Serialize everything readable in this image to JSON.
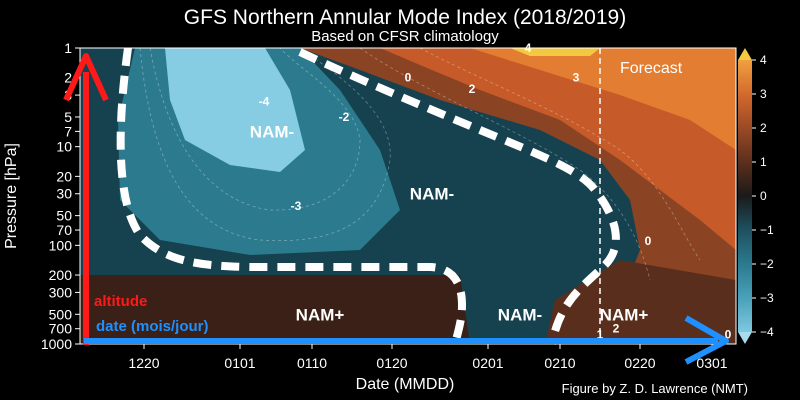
{
  "chart_data": {
    "type": "heatmap",
    "title": "GFS Northern Annular Mode Index (2018/2019)",
    "subtitle": "Based on CFSR climatology",
    "xlabel": "Date (MMDD)",
    "ylabel": "Pressure [hPa]",
    "credit": "Figure by Z. D. Lawrence (NMT)",
    "x_ticks": [
      "1220",
      "0101",
      "0110",
      "0120",
      "0201",
      "0210",
      "0220",
      "0301"
    ],
    "y_ticks": [
      "1",
      "2",
      "3",
      "5",
      "7",
      "10",
      "20",
      "30",
      "50",
      "70",
      "100",
      "200",
      "300",
      "500",
      "700",
      "1000"
    ],
    "y_scale": "log",
    "y_inverted": true,
    "ylim": [
      1000,
      1
    ],
    "colorbar": {
      "ticks": [
        "4",
        "3",
        "2",
        "1",
        "0",
        "−1",
        "−2",
        "−3",
        "−4"
      ],
      "range": [
        -4,
        4
      ],
      "colors": [
        "#7fc8e0",
        "#4aa3bb",
        "#2b7a8e",
        "#1e4f5e",
        "#1a1a1a",
        "#5a2e1c",
        "#9a4a26",
        "#d2682c",
        "#f0a040"
      ],
      "extend_top_color": "#f5c842",
      "extend_bottom_color": "#a6dcec"
    },
    "contour_labels": [
      {
        "text": "-4",
        "date": "0104",
        "p": 3.5
      },
      {
        "text": "-2",
        "date": "0114",
        "p": 5
      },
      {
        "text": "-3",
        "date": "0108",
        "p": 40
      },
      {
        "text": "0",
        "date": "0122",
        "p": 2
      },
      {
        "text": "2",
        "date": "0130",
        "p": 2.6
      },
      {
        "text": "3",
        "date": "0212",
        "p": 2
      },
      {
        "text": "4",
        "date": "0206",
        "p": 1
      },
      {
        "text": "0",
        "date": "0221",
        "p": 90
      },
      {
        "text": "1",
        "date": "0215",
        "p": 800
      },
      {
        "text": "2",
        "date": "0217",
        "p": 700
      },
      {
        "text": "0",
        "date": "0303",
        "p": 800
      }
    ],
    "forecast_label": "Forecast",
    "forecast_start": "0215",
    "regions": [
      {
        "label": "NAM-",
        "date": "0105",
        "p": 7
      },
      {
        "text_key": "second",
        "label": "NAM-",
        "date": "0125",
        "p": 30
      },
      {
        "label": "NAM+",
        "date": "0111",
        "p": 500
      },
      {
        "label": "NAM-",
        "date": "0205",
        "p": 500
      },
      {
        "label": "NAM+",
        "date": "0218",
        "p": 500
      }
    ],
    "annotations": {
      "altitude": "altitude",
      "date": "date (mois/jour)"
    },
    "colors": {
      "annotation_altitude": "#ff1a1a",
      "annotation_date": "#1e90ff",
      "forecast_line": "#ffffff",
      "regime_boundary": "#ffffff"
    }
  }
}
